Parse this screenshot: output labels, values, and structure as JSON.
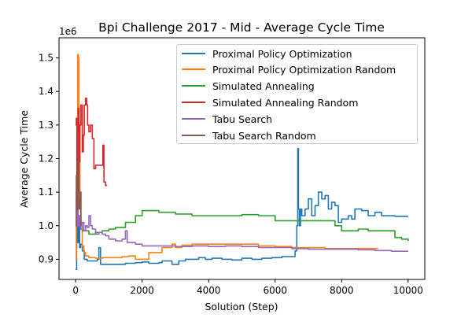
{
  "chart_data": {
    "type": "line",
    "title": "Bpi Challenge 2017 - Mid - Average Cycle Time",
    "xlabel": "Solution (Step)",
    "ylabel": "Average Cycle Time",
    "y_offset_label": "1e6",
    "xlim": [
      -500,
      10500
    ],
    "ylim": [
      840000,
      1560000
    ],
    "xticks": [
      0,
      2000,
      4000,
      6000,
      8000,
      10000
    ],
    "xtick_labels": [
      "0",
      "2000",
      "4000",
      "6000",
      "8000",
      "10000"
    ],
    "yticks": [
      900000,
      1000000,
      1100000,
      1200000,
      1300000,
      1400000,
      1500000
    ],
    "ytick_labels": [
      "0.9",
      "1.0",
      "1.1",
      "1.2",
      "1.3",
      "1.4",
      "1.5"
    ],
    "grid": false,
    "legend_position": "top-right",
    "series": [
      {
        "name": "Proximal Policy Optimization",
        "color": "#1f77b4",
        "x": [
          0,
          30,
          60,
          90,
          120,
          150,
          200,
          260,
          300,
          350,
          400,
          500,
          600,
          650,
          700,
          750,
          800,
          1000,
          1500,
          1800,
          2000,
          2200,
          2500,
          2600,
          2900,
          3100,
          3300,
          3500,
          3700,
          3900,
          4100,
          4400,
          4700,
          5000,
          5300,
          5600,
          5900,
          6200,
          6450,
          6600,
          6650,
          6680,
          6700,
          6730,
          6760,
          6800,
          6900,
          7000,
          7100,
          7200,
          7300,
          7400,
          7500,
          7600,
          7700,
          7800,
          7900,
          8000,
          8200,
          8300,
          8400,
          8600,
          8800,
          9000,
          9200,
          9400,
          9600,
          9800,
          10000
        ],
        "y": [
          870000,
          1150000,
          950000,
          1000000,
          935000,
          945000,
          925000,
          900000,
          900000,
          895000,
          895000,
          895000,
          895000,
          900000,
          935000,
          885000,
          885000,
          885000,
          888000,
          890000,
          892000,
          888000,
          890000,
          895000,
          885000,
          895000,
          900000,
          900000,
          905000,
          900000,
          903000,
          900000,
          898000,
          903000,
          900000,
          903000,
          905000,
          908000,
          908000,
          925000,
          1000000,
          1230000,
          1050000,
          1000000,
          1050000,
          1030000,
          1050000,
          1080000,
          1030000,
          1060000,
          1100000,
          1080000,
          1090000,
          1050000,
          1070000,
          1060000,
          1010000,
          1020000,
          1030000,
          1020000,
          1050000,
          1045000,
          1030000,
          1040000,
          1030000,
          1030000,
          1028000,
          1028000,
          1028000
        ]
      },
      {
        "name": "Proximal Policy Optimization Random",
        "color": "#ff7f0e",
        "x": [
          0,
          20,
          40,
          60,
          80,
          100,
          130,
          160,
          200,
          250,
          300,
          400,
          500,
          600,
          800,
          1000,
          1200,
          1400,
          1600,
          1800,
          2000,
          2200,
          2400,
          2600,
          2800,
          2900,
          3000,
          3200,
          3500,
          4000,
          4500,
          5000,
          5500,
          6000,
          6500,
          7000,
          7500,
          8000,
          8500,
          9000,
          9100
        ],
        "y": [
          900000,
          1000000,
          1150000,
          1510000,
          1500000,
          1300000,
          1100000,
          1000000,
          940000,
          920000,
          910000,
          905000,
          905000,
          903000,
          905000,
          905000,
          905000,
          908000,
          910000,
          900000,
          900000,
          920000,
          920000,
          935000,
          935000,
          945000,
          935000,
          942000,
          945000,
          945000,
          945000,
          945000,
          940000,
          938000,
          935000,
          935000,
          932000,
          932000,
          932000,
          932000,
          932000
        ]
      },
      {
        "name": "Simulated Annealing",
        "color": "#2ca02c",
        "x": [
          0,
          50,
          100,
          150,
          200,
          300,
          400,
          600,
          800,
          1000,
          1200,
          1500,
          1800,
          2000,
          2200,
          2500,
          2800,
          3000,
          3500,
          4000,
          4500,
          5000,
          5500,
          6000,
          6500,
          7000,
          7500,
          7800,
          8000,
          8200,
          8500,
          8800,
          9000,
          9400,
          9600,
          9800,
          10000
        ],
        "y": [
          1000000,
          1030000,
          1000000,
          990000,
          985000,
          985000,
          975000,
          980000,
          985000,
          990000,
          995000,
          1010000,
          1030000,
          1045000,
          1045000,
          1040000,
          1040000,
          1035000,
          1030000,
          1030000,
          1030000,
          1033000,
          1030000,
          1015000,
          1015000,
          1015000,
          1015000,
          1000000,
          985000,
          985000,
          990000,
          985000,
          985000,
          985000,
          965000,
          960000,
          955000
        ]
      },
      {
        "name": "Simulated Annealing Random",
        "color": "#d62728",
        "x": [
          0,
          20,
          40,
          60,
          80,
          100,
          130,
          160,
          200,
          230,
          260,
          300,
          330,
          360,
          400,
          450,
          500,
          550,
          600,
          700,
          800,
          820,
          850,
          880,
          900,
          950
        ],
        "y": [
          1300000,
          1320000,
          1040000,
          1280000,
          1350000,
          1190000,
          1300000,
          1360000,
          1220000,
          1270000,
          1360000,
          1380000,
          1360000,
          1300000,
          1280000,
          1300000,
          1260000,
          1170000,
          1180000,
          1180000,
          1180000,
          1240000,
          1130000,
          1130000,
          1120000,
          1120000
        ]
      },
      {
        "name": "Tabu Search",
        "color": "#9467bd",
        "x": [
          0,
          20,
          50,
          80,
          120,
          150,
          200,
          250,
          300,
          350,
          400,
          450,
          500,
          600,
          700,
          800,
          900,
          1000,
          1200,
          1400,
          1500,
          1550,
          1600,
          1800,
          2000,
          2500,
          3000,
          3500,
          4000,
          4500,
          5000,
          5500,
          6000,
          6500,
          7000,
          7500,
          8000,
          8500,
          9000,
          9500,
          10000
        ],
        "y": [
          1100000,
          1000000,
          1050000,
          1000000,
          1030000,
          990000,
          1010000,
          985000,
          1000000,
          995000,
          1030000,
          1000000,
          990000,
          975000,
          980000,
          975000,
          970000,
          960000,
          955000,
          960000,
          985000,
          950000,
          950000,
          945000,
          940000,
          940000,
          938000,
          940000,
          938000,
          940000,
          938000,
          935000,
          935000,
          932000,
          930000,
          930000,
          930000,
          928000,
          926000,
          924000,
          924000
        ]
      },
      {
        "name": "Tabu Search Random",
        "color": "#8c564b",
        "x": [
          0,
          20,
          40,
          60,
          80,
          100,
          120,
          140,
          160
        ],
        "y": [
          1000000,
          1150000,
          1050000,
          1100000,
          1200000,
          1050000,
          1080000,
          1100000,
          1000000
        ]
      }
    ]
  }
}
